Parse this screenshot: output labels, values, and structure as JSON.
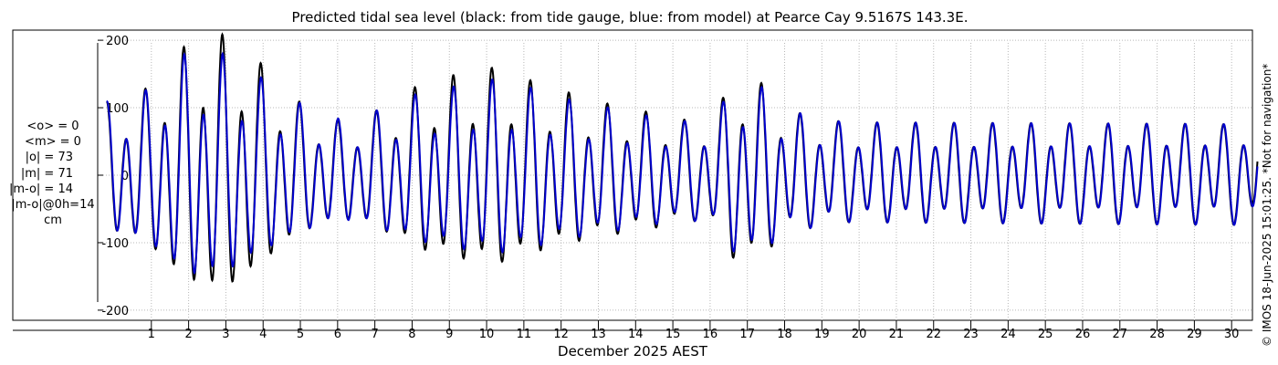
{
  "chart_data": {
    "type": "line",
    "title": "Predicted tidal sea level (black: from tide gauge, blue: from model) at Pearce Cay 9.5167S 143.3E.",
    "xlabel": "December 2025 AEST",
    "ylabel": "",
    "xlim": [
      0,
      31
    ],
    "ylim": [
      -215,
      215
    ],
    "yticks": [
      -200,
      -100,
      0,
      100,
      200
    ],
    "xticks": [
      1,
      2,
      3,
      4,
      5,
      6,
      7,
      8,
      9,
      10,
      11,
      12,
      13,
      14,
      15,
      16,
      17,
      18,
      19,
      20,
      21,
      22,
      23,
      24,
      25,
      26,
      27,
      28,
      29,
      30
    ],
    "grid": true,
    "series": [
      {
        "name": "black: from tide gauge",
        "color": "#000000",
        "x_day": [
          0.3,
          0.8,
          1.3,
          1.8,
          2.3,
          2.8,
          3.3,
          3.8,
          4.3,
          4.8,
          5.3,
          5.8,
          6.3,
          6.8,
          7.3,
          7.8,
          8.3,
          8.8,
          9.3,
          9.8,
          10.3,
          10.8,
          11.3,
          11.8,
          12.3,
          12.8,
          13.3,
          13.8,
          14.3,
          14.8,
          15.3,
          15.8,
          16.3,
          16.8,
          17.3,
          17.8,
          18.3,
          18.8,
          19.3,
          19.8,
          20.3,
          20.8,
          21.3,
          21.8,
          22.3,
          22.8,
          23.3,
          23.8,
          24.3,
          24.8,
          25.3,
          25.8,
          26.3,
          26.8,
          27.3,
          27.8,
          28.3,
          28.8,
          29.3,
          29.8,
          30.3,
          30.8
        ],
        "envelope": [
          95,
          100,
          125,
          155,
          175,
          185,
          180,
          165,
          135,
          110,
          90,
          80,
          70,
          75,
          85,
          100,
          115,
          125,
          130,
          135,
          140,
          135,
          125,
          115,
          110,
          100,
          95,
          90,
          85,
          80,
          75,
          70,
          80,
          125,
          135,
          110,
          85,
          80,
          75,
          70,
          70,
          70,
          70,
          70,
          70,
          70,
          70,
          70,
          70,
          70,
          70,
          70,
          70,
          70,
          70,
          70,
          70,
          70,
          70,
          70,
          70,
          70
        ]
      },
      {
        "name": "blue: from model",
        "color": "#0000cc",
        "x_day": [
          0.3,
          0.8,
          1.3,
          1.8,
          2.3,
          2.8,
          3.3,
          3.8,
          4.3,
          4.8,
          5.3,
          5.8,
          6.3,
          6.8,
          7.3,
          7.8,
          8.3,
          8.8,
          9.3,
          9.8,
          10.3,
          10.8,
          11.3,
          11.8,
          12.3,
          12.8,
          13.3,
          13.8,
          14.3,
          14.8,
          15.3,
          15.8,
          16.3,
          16.8,
          17.3,
          17.8,
          18.3,
          18.8,
          19.3,
          19.8,
          20.3,
          20.8,
          21.3,
          21.8,
          22.3,
          22.8,
          23.3,
          23.8,
          24.3,
          24.8,
          25.3,
          25.8,
          26.3,
          26.8,
          27.3,
          27.8,
          28.3,
          28.8,
          29.3,
          29.8,
          30.3,
          30.8
        ],
        "envelope": [
          95,
          100,
          120,
          145,
          165,
          160,
          155,
          140,
          120,
          105,
          90,
          80,
          72,
          75,
          85,
          95,
          105,
          110,
          115,
          120,
          125,
          120,
          115,
          108,
          100,
          95,
          90,
          85,
          80,
          75,
          72,
          70,
          78,
          115,
          130,
          105,
          85,
          80,
          75,
          70,
          70,
          70,
          70,
          70,
          70,
          70,
          70,
          70,
          70,
          70,
          70,
          70,
          70,
          70,
          70,
          70,
          70,
          70,
          70,
          70,
          70,
          70
        ]
      }
    ]
  },
  "stats": {
    "mean_o": "<o> = 0",
    "mean_m": "<m> = 0",
    "abs_o": "|o| = 73",
    "abs_m": "|m| = 71",
    "abs_mo": "|m-o| = 14",
    "abs_mo0": "|m-o|@0h=14",
    "unit": "cm"
  },
  "copyright": "© IMOS 18-Jun-2025 15:01:25. *Not for navigation*"
}
